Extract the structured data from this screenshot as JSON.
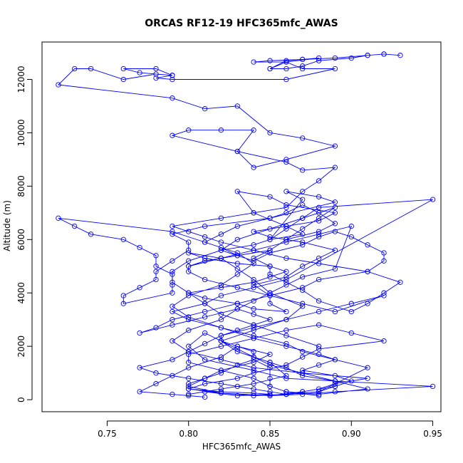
{
  "chart_data": {
    "type": "line",
    "title": "ORCAS RF12-19 HFC365mfc_AWAS",
    "xlabel": "HFC365mfc_AWAS",
    "ylabel": "Altitude (m)",
    "xlim": [
      0.71,
      0.955
    ],
    "ylim": [
      -450,
      13400
    ],
    "x_ticks": [
      0.75,
      0.8,
      0.85,
      0.9,
      0.95
    ],
    "x_tick_labels": [
      "0.75",
      "0.80",
      "0.85",
      "0.90",
      "0.95"
    ],
    "y_ticks": [
      0,
      2000,
      4000,
      6000,
      8000,
      10000,
      12000
    ],
    "y_tick_labels": [
      "0",
      "2000",
      "4000",
      "6000",
      "8000",
      "10000",
      "12000"
    ],
    "grid": false,
    "legend": "none",
    "marker": "open-circle",
    "color": "#0000ff",
    "series": [
      {
        "x": [
          0.88,
          0.86,
          0.85,
          0.85,
          0.85,
          0.84,
          0.83,
          0.82,
          0.81,
          0.8,
          0.8,
          0.82,
          0.84,
          0.85,
          0.83,
          0.81,
          0.8,
          0.82,
          0.84,
          0.86,
          0.85,
          0.83,
          0.82,
          0.84,
          0.86,
          0.87,
          0.85,
          0.84,
          0.83,
          0.82,
          0.8,
          0.81,
          0.83,
          0.85,
          0.86,
          0.85,
          0.84,
          0.82,
          0.8,
          0.81,
          0.83,
          0.84,
          0.86,
          0.85,
          0.85,
          0.84,
          0.86,
          0.87,
          0.88,
          0.89,
          0.87,
          0.85,
          0.84,
          0.86,
          0.88,
          0.89,
          0.86,
          0.85,
          0.83,
          0.84,
          0.86,
          0.87,
          0.85,
          0.84,
          0.82,
          0.83,
          0.81,
          0.8,
          0.82,
          0.85,
          0.86,
          0.88,
          0.89,
          0.88,
          0.87,
          0.86,
          0.85,
          0.83,
          0.82,
          0.81,
          0.82,
          0.83,
          0.84,
          0.85,
          0.87,
          0.88,
          0.89,
          0.9,
          0.91,
          0.92,
          0.92,
          0.91,
          0.93,
          0.92,
          0.91,
          0.9,
          0.88,
          0.87,
          0.86,
          0.85,
          0.85,
          0.84,
          0.85,
          0.86,
          0.87,
          0.88,
          0.89,
          0.87,
          0.86,
          0.85,
          0.87,
          0.86,
          0.88,
          0.89,
          0.85,
          0.81,
          0.79,
          0.8,
          0.8,
          0.79,
          0.78,
          0.78,
          0.77,
          0.76,
          0.76,
          0.79,
          0.79,
          0.79,
          0.78,
          0.78,
          0.77,
          0.76,
          0.74,
          0.73,
          0.72,
          0.79,
          0.81,
          0.83,
          0.84,
          0.83,
          0.82,
          0.8,
          0.79,
          0.8,
          0.82,
          0.84,
          0.86,
          0.88,
          0.89,
          0.88,
          0.87,
          0.89,
          0.9,
          0.89,
          0.88,
          0.86,
          0.85,
          0.87,
          0.89,
          0.89,
          0.87,
          0.86,
          0.85,
          0.84,
          0.84,
          0.83,
          0.82,
          0.82,
          0.83,
          0.84,
          0.85,
          0.84,
          0.83,
          0.82,
          0.8,
          0.79,
          0.8,
          0.82,
          0.84,
          0.87,
          0.91,
          0.89,
          0.88,
          0.87,
          0.86,
          0.84,
          0.82,
          0.8,
          0.81,
          0.83,
          0.84,
          0.86,
          0.87,
          0.88,
          0.92,
          0.9,
          0.88,
          0.86,
          0.84,
          0.82,
          0.8,
          0.8,
          0.82,
          0.84,
          0.85,
          0.86,
          0.88,
          0.91,
          0.89,
          0.87,
          0.85,
          0.84,
          0.83,
          0.82,
          0.81,
          0.8,
          0.81,
          0.84,
          0.86,
          0.95,
          0.89,
          0.87,
          0.85,
          0.82,
          0.8,
          0.81,
          0.82,
          0.84,
          0.85,
          0.83,
          0.82,
          0.8,
          0.79,
          0.78,
          0.77,
          0.79,
          0.8,
          0.81
        ],
        "y": [
          150,
          300,
          500,
          800,
          1200,
          1500,
          1300,
          1000,
          800,
          600,
          400,
          300,
          250,
          200,
          150,
          300,
          200,
          400,
          600,
          900,
          1400,
          1800,
          2200,
          2600,
          3000,
          3500,
          4000,
          4500,
          4900,
          5300,
          5500,
          5300,
          5100,
          5000,
          4800,
          4600,
          4400,
          4200,
          4000,
          3800,
          3600,
          3400,
          3300,
          3600,
          3900,
          4300,
          4600,
          5000,
          5300,
          5600,
          5900,
          6100,
          6300,
          6500,
          6700,
          7000,
          7300,
          7600,
          7800,
          7000,
          6500,
          6200,
          6000,
          5800,
          5600,
          5400,
          5200,
          5000,
          5300,
          5600,
          6000,
          6300,
          6600,
          7000,
          7300,
          7000,
          6800,
          6500,
          6200,
          5900,
          5700,
          5400,
          5200,
          5500,
          5800,
          6100,
          6300,
          6100,
          5800,
          5500,
          5200,
          4800,
          4400,
          4000,
          3600,
          3300,
          3700,
          4100,
          4400,
          4700,
          5000,
          5300,
          5600,
          6000,
          6400,
          6800,
          7200,
          6800,
          6400,
          6000,
          7500,
          7800,
          7600,
          7400,
          6800,
          6500,
          6200,
          5900,
          5600,
          5200,
          4800,
          4500,
          4200,
          3900,
          3600,
          4000,
          4300,
          4700,
          5000,
          5400,
          5700,
          6000,
          6200,
          6500,
          6800,
          6300,
          5900,
          5500,
          5100,
          4700,
          4300,
          3900,
          3500,
          3100,
          2700,
          2300,
          2000,
          1700,
          1500,
          1300,
          1100,
          900,
          700,
          500,
          300,
          200,
          150,
          300,
          500,
          700,
          900,
          1200,
          1400,
          1600,
          1800,
          2000,
          2200,
          2400,
          2600,
          2800,
          3000,
          3200,
          3400,
          3000,
          2600,
          2200,
          1800,
          1500,
          1200,
          1000,
          800,
          600,
          400,
          300,
          200,
          150,
          250,
          400,
          600,
          800,
          1000,
          1300,
          1600,
          1900,
          2200,
          2500,
          2800,
          2600,
          2300,
          2000,
          1700,
          1400,
          1100,
          800,
          500,
          300,
          200,
          400,
          700,
          1000,
          1300,
          1600,
          1900,
          2200,
          2500,
          2000,
          1500,
          1100,
          800,
          500,
          300,
          200,
          150,
          250,
          500,
          800,
          1100,
          1400,
          1700,
          2000,
          1600,
          1200,
          900,
          600,
          300,
          200,
          150,
          100
        ],
        "name": ""
      },
      {
        "x": [
          0.85,
          0.86,
          0.87,
          0.88,
          0.86,
          0.84,
          0.85,
          0.87,
          0.89,
          0.91,
          0.92,
          0.93,
          0.92,
          0.91,
          0.9,
          0.88,
          0.87,
          0.86,
          0.85,
          0.86,
          0.87,
          0.89,
          0.86,
          0.79,
          0.78,
          0.79,
          0.79,
          0.77,
          0.76,
          0.78,
          0.79,
          0.78,
          0.76,
          0.74,
          0.73,
          0.72,
          0.79,
          0.81,
          0.83,
          0.85,
          0.87,
          0.89,
          0.86,
          0.84,
          0.83,
          0.84,
          0.82,
          0.8,
          0.79,
          0.83,
          0.86,
          0.87,
          0.89,
          0.88,
          0.87,
          0.86,
          0.84,
          0.82,
          0.79,
          0.8,
          0.81,
          0.82,
          0.84,
          0.86,
          0.88,
          0.91,
          0.88,
          0.87,
          0.85,
          0.83,
          0.81,
          0.79,
          0.78,
          0.77,
          0.79,
          0.81,
          0.83,
          0.84,
          0.85,
          0.86,
          0.87,
          0.89,
          0.9,
          0.88,
          0.86,
          0.84,
          0.82,
          0.8,
          0.8,
          0.81,
          0.83,
          0.85,
          0.87,
          0.89,
          0.92,
          0.9,
          0.88,
          0.86,
          0.84,
          0.82,
          0.81,
          0.8,
          0.79,
          0.77,
          0.78,
          0.8,
          0.82,
          0.83,
          0.84,
          0.85,
          0.86,
          0.88,
          0.91,
          0.89,
          0.87,
          0.86,
          0.84,
          0.82,
          0.8,
          0.79,
          0.81,
          0.82,
          0.84,
          0.86,
          0.95,
          0.88,
          0.87,
          0.85,
          0.83,
          0.82,
          0.8,
          0.79,
          0.79,
          0.8,
          0.81,
          0.82,
          0.84,
          0.86,
          0.88
        ],
        "y": [
          12400,
          12700,
          12750,
          12800,
          12650,
          12650,
          12700,
          12750,
          12800,
          12900,
          12950,
          12900,
          12950,
          12900,
          12800,
          12700,
          12500,
          12400,
          12400,
          12650,
          12400,
          12400,
          12000,
          12000,
          12050,
          12150,
          12150,
          12250,
          12400,
          12400,
          12150,
          12200,
          12000,
          12400,
          12400,
          11800,
          11300,
          10900,
          11000,
          10000,
          9800,
          9500,
          9000,
          8700,
          9300,
          10100,
          10100,
          10100,
          9900,
          9300,
          8900,
          8600,
          8700,
          8200,
          7800,
          7200,
          7000,
          6800,
          6500,
          6300,
          6100,
          5900,
          5600,
          5300,
          5100,
          4800,
          4500,
          4200,
          3900,
          3600,
          3300,
          3000,
          2700,
          2500,
          2800,
          3100,
          3400,
          3700,
          4000,
          4300,
          4600,
          4900,
          6500,
          6200,
          5900,
          5600,
          5300,
          5000,
          4800,
          4500,
          4200,
          3900,
          3600,
          3300,
          3900,
          3600,
          3300,
          3000,
          2700,
          2400,
          2100,
          1800,
          1500,
          1200,
          1000,
          800,
          600,
          500,
          400,
          300,
          200,
          300,
          1200,
          1500,
          1800,
          2100,
          2400,
          2700,
          3000,
          3300,
          3600,
          3900,
          4200,
          4500,
          7500,
          7200,
          6800,
          6400,
          6000,
          5600,
          5200,
          4800,
          4400,
          4000,
          3600,
          3200,
          2800,
          2400,
          2000
        ],
        "name": ""
      }
    ]
  }
}
